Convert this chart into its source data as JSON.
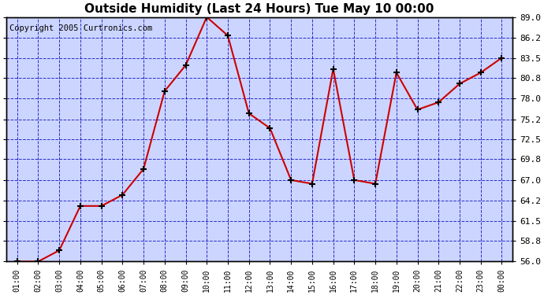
{
  "title": "Outside Humidity (Last 24 Hours) Tue May 10 00:00",
  "copyright": "Copyright 2005 Curtronics.com",
  "x_labels": [
    "01:00",
    "02:00",
    "03:00",
    "04:00",
    "05:00",
    "06:00",
    "07:00",
    "08:00",
    "09:00",
    "10:00",
    "11:00",
    "12:00",
    "13:00",
    "14:00",
    "15:00",
    "16:00",
    "17:00",
    "18:00",
    "19:00",
    "20:00",
    "21:00",
    "22:00",
    "23:00",
    "00:00"
  ],
  "y_values": [
    56.0,
    56.0,
    57.5,
    63.5,
    63.5,
    65.0,
    68.5,
    79.0,
    82.5,
    89.0,
    86.5,
    76.0,
    74.0,
    67.0,
    66.5,
    82.0,
    67.0,
    66.5,
    81.5,
    76.5,
    77.5,
    80.0,
    81.5,
    83.5
  ],
  "y_ticks": [
    56.0,
    58.8,
    61.5,
    64.2,
    67.0,
    69.8,
    72.5,
    75.2,
    78.0,
    80.8,
    83.5,
    86.2,
    89.0
  ],
  "ylim": [
    56.0,
    89.0
  ],
  "line_color": "#cc0000",
  "marker_color": "#000000",
  "bg_color": "#ccd5ff",
  "fig_bg_color": "#ffffff",
  "grid_color": "#0000bb",
  "title_fontsize": 11,
  "copyright_fontsize": 7.5
}
